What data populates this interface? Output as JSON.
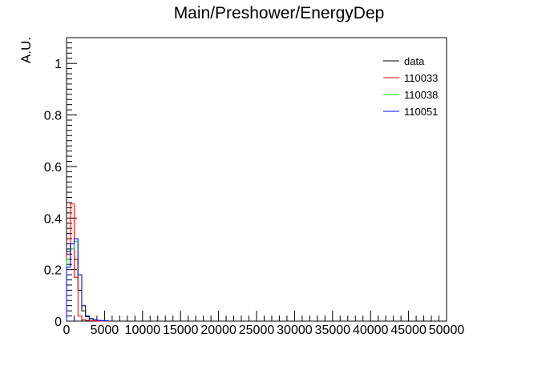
{
  "chart_data": {
    "type": "line",
    "title": "Main/Preshower/EnergyDep",
    "xlabel": "",
    "ylabel": "A.U.",
    "xlim": [
      0,
      50000
    ],
    "ylim": [
      0,
      1.1
    ],
    "x_ticks": [
      "0",
      "5000",
      "10000",
      "15000",
      "20000",
      "25000",
      "30000",
      "35000",
      "40000",
      "45000",
      "50000"
    ],
    "y_ticks": [
      "0",
      "0.2",
      "0.4",
      "0.6",
      "0.8",
      "1"
    ],
    "legend_position": "top-right",
    "bin_width": 500,
    "series": [
      {
        "name": "data",
        "color": "#000000",
        "values": [
          0.27,
          0.3,
          0.24,
          0.12,
          0.04,
          0.017,
          0.009,
          0.005,
          0.003,
          0.002,
          0.001
        ]
      },
      {
        "name": "110033",
        "color": "#ff0000",
        "values": [
          0.26,
          0.455,
          0.17,
          0.02,
          0.006,
          0.003,
          0.002,
          0.001,
          0.0,
          0.0,
          0.0
        ]
      },
      {
        "name": "110038",
        "color": "#00cc00",
        "values": [
          0.24,
          0.28,
          0.31,
          0.18,
          0.06,
          0.02,
          0.01,
          0.005,
          0.003,
          0.002,
          0.001
        ]
      },
      {
        "name": "110051",
        "color": "#0000ff",
        "values": [
          0.21,
          0.3,
          0.32,
          0.18,
          0.06,
          0.02,
          0.01,
          0.005,
          0.003,
          0.002,
          0.001
        ]
      }
    ]
  }
}
